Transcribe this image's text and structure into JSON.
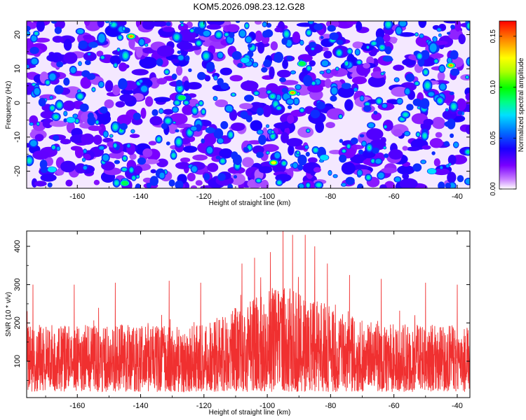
{
  "title": "KOM5.2026.098.23.12.G28",
  "chart_data": [
    {
      "type": "heatmap",
      "xlabel": "Height of straight line (km)",
      "ylabel": "Frequency (Hz)",
      "xlim": [
        -176,
        -36
      ],
      "ylim": [
        -25,
        24
      ],
      "x_ticks": [
        -160,
        -140,
        -120,
        -100,
        -80,
        -60,
        -40
      ],
      "y_ticks": [
        -20,
        -10,
        0,
        10,
        20
      ],
      "colorbar": {
        "label": "Normalized spectral amplitude",
        "range": [
          0,
          0.165
        ],
        "ticks": [
          0.0,
          0.05,
          0.1,
          0.15
        ],
        "tick_labels": [
          "0.00",
          "0.05",
          "0.10",
          "0.15"
        ]
      },
      "hot_spots": [
        {
          "x": -143,
          "y": 19.5,
          "value": 0.16
        },
        {
          "x": -92,
          "y": 3,
          "value": 0.15
        },
        {
          "x": -98,
          "y": -17.5,
          "value": 0.14
        },
        {
          "x": -42,
          "y": 11,
          "value": 0.15
        },
        {
          "x": -127,
          "y": 1.5,
          "value": 0.09
        },
        {
          "x": -107,
          "y": 12.5,
          "value": 0.08
        },
        {
          "x": -82,
          "y": -16,
          "value": 0.08
        },
        {
          "x": -168,
          "y": -19.5,
          "value": 0.08
        },
        {
          "x": -162,
          "y": -5,
          "value": 0.07
        },
        {
          "x": -145,
          "y": -23.5,
          "value": 0.09
        },
        {
          "x": -89,
          "y": 11.5,
          "value": 0.09
        },
        {
          "x": -155,
          "y": 17,
          "value": 0.06
        },
        {
          "x": -48,
          "y": -20,
          "value": 0.07
        },
        {
          "x": -62,
          "y": 13,
          "value": 0.06
        },
        {
          "x": -118,
          "y": -8,
          "value": 0.06
        },
        {
          "x": -75,
          "y": 5,
          "value": 0.06
        }
      ]
    },
    {
      "type": "line",
      "xlabel": "Height of straight line (km)",
      "ylabel": "SNR (10 * v/v)",
      "xlim": [
        -176,
        -36
      ],
      "ylim": [
        5,
        440
      ],
      "x_ticks": [
        -160,
        -140,
        -120,
        -100,
        -80,
        -60,
        -40
      ],
      "y_ticks": [
        100,
        200,
        300,
        400
      ],
      "color": "#f03030",
      "peaks": [
        {
          "x": -174,
          "y": 300
        },
        {
          "x": -161,
          "y": 300
        },
        {
          "x": -148,
          "y": 305
        },
        {
          "x": -131,
          "y": 310
        },
        {
          "x": -121,
          "y": 305
        },
        {
          "x": -108,
          "y": 355
        },
        {
          "x": -104,
          "y": 370
        },
        {
          "x": -99,
          "y": 385
        },
        {
          "x": -95,
          "y": 440
        },
        {
          "x": -92,
          "y": 430
        },
        {
          "x": -88,
          "y": 430
        },
        {
          "x": -85,
          "y": 400
        },
        {
          "x": -81,
          "y": 355
        },
        {
          "x": -74,
          "y": 325
        },
        {
          "x": -64,
          "y": 315
        },
        {
          "x": -50,
          "y": 305
        },
        {
          "x": -40,
          "y": 300
        }
      ],
      "baseline": {
        "low": 20,
        "mean": 110
      }
    }
  ]
}
